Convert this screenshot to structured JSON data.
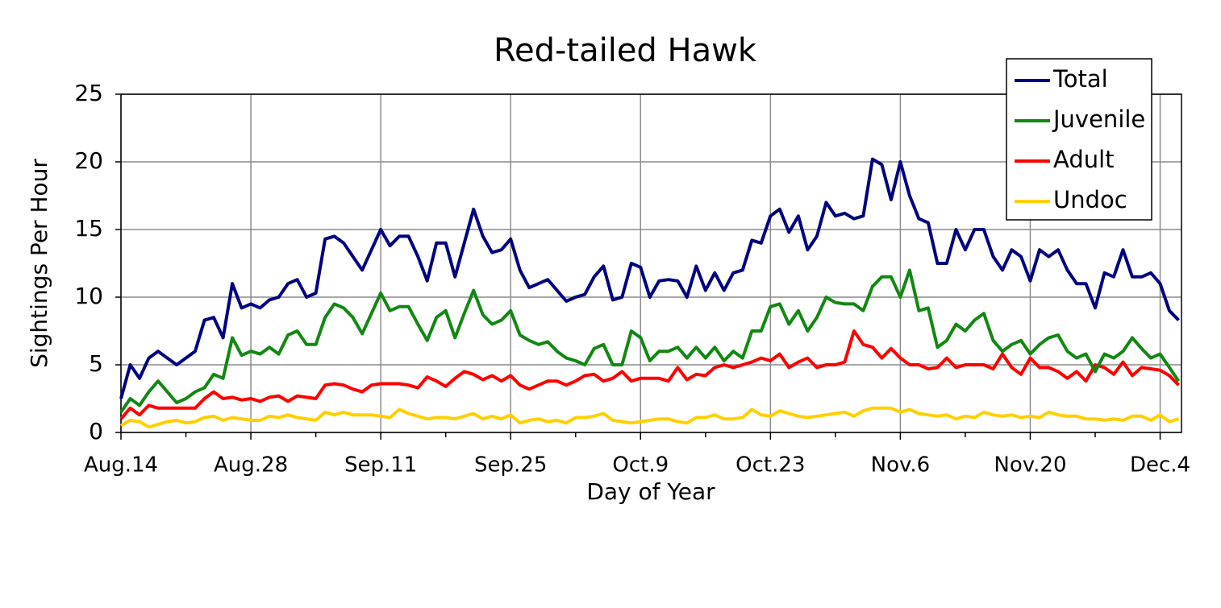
{
  "chart_data": {
    "type": "line",
    "title": "Red-tailed Hawk",
    "xlabel": "Day of Year",
    "ylabel": "Sightings Per Hour",
    "x": [
      226,
      227,
      228,
      229,
      230,
      231,
      232,
      233,
      234,
      235,
      236,
      237,
      238,
      239,
      240,
      241,
      242,
      243,
      244,
      245,
      246,
      247,
      248,
      249,
      250,
      251,
      252,
      253,
      254,
      255,
      256,
      257,
      258,
      259,
      260,
      261,
      262,
      263,
      264,
      265,
      266,
      267,
      268,
      269,
      270,
      271,
      272,
      273,
      274,
      275,
      276,
      277,
      278,
      279,
      280,
      281,
      282,
      283,
      284,
      285,
      286,
      287,
      288,
      289,
      290,
      291,
      292,
      293,
      294,
      295,
      296,
      297,
      298,
      299,
      300,
      301,
      302,
      303,
      304,
      305,
      306,
      307,
      308,
      309,
      310,
      311,
      312,
      313,
      314,
      315,
      316,
      317,
      318,
      319,
      320,
      321,
      322,
      323,
      324,
      325,
      326,
      327,
      328,
      329,
      330,
      331,
      332,
      333,
      334,
      335,
      336,
      337,
      338,
      339,
      340
    ],
    "series": [
      {
        "name": "Total",
        "color": "#000080",
        "values": [
          2.5,
          5.0,
          4.0,
          5.5,
          6.0,
          5.5,
          5.0,
          5.5,
          6.0,
          8.3,
          8.5,
          7.0,
          11.0,
          9.2,
          9.5,
          9.2,
          9.8,
          10.0,
          11.0,
          11.3,
          10.0,
          10.3,
          14.3,
          14.5,
          14.0,
          13.0,
          12.0,
          13.5,
          15.0,
          13.8,
          14.5,
          14.5,
          13.0,
          11.2,
          14.0,
          14.0,
          11.5,
          14.0,
          16.5,
          14.5,
          13.3,
          13.5,
          14.3,
          12.0,
          10.7,
          11.0,
          11.3,
          10.5,
          9.7,
          10.0,
          10.2,
          11.5,
          12.3,
          9.8,
          10.0,
          12.5,
          12.2,
          10.0,
          11.2,
          11.3,
          11.2,
          10.0,
          12.3,
          10.5,
          11.8,
          10.5,
          11.8,
          12.0,
          14.2,
          14.0,
          16.0,
          16.5,
          14.8,
          16.0,
          13.5,
          14.5,
          17.0,
          16.0,
          16.2,
          15.8,
          16.0,
          20.2,
          19.8,
          17.2,
          20.0,
          17.5,
          15.8,
          15.5,
          12.5,
          12.5,
          15.0,
          13.5,
          15.0,
          15.0,
          13.0,
          12.0,
          13.5,
          13.0,
          11.2,
          13.5,
          13.0,
          13.5,
          12.0,
          11.0,
          11.0,
          9.2,
          11.8,
          11.5,
          13.5,
          11.5,
          11.5,
          11.8,
          11.0,
          9.0,
          8.3
        ]
      },
      {
        "name": "Juvenile",
        "color": "#118811",
        "values": [
          1.5,
          2.5,
          2.0,
          3.0,
          3.8,
          3.0,
          2.2,
          2.5,
          3.0,
          3.3,
          4.3,
          4.0,
          7.0,
          5.7,
          6.0,
          5.8,
          6.3,
          5.8,
          7.2,
          7.5,
          6.5,
          6.5,
          8.5,
          9.5,
          9.2,
          8.5,
          7.3,
          8.8,
          10.3,
          9.0,
          9.3,
          9.3,
          8.0,
          6.8,
          8.5,
          9.0,
          7.0,
          8.8,
          10.5,
          8.7,
          8.0,
          8.3,
          9.0,
          7.2,
          6.8,
          6.5,
          6.7,
          6.0,
          5.5,
          5.3,
          5.0,
          6.2,
          6.5,
          5.0,
          5.0,
          7.5,
          7.0,
          5.3,
          6.0,
          6.0,
          6.3,
          5.5,
          6.3,
          5.5,
          6.3,
          5.3,
          6.0,
          5.5,
          7.5,
          7.5,
          9.3,
          9.5,
          8.0,
          9.0,
          7.5,
          8.5,
          10.0,
          9.6,
          9.5,
          9.5,
          9.0,
          10.8,
          11.5,
          11.5,
          10.0,
          12.0,
          9.0,
          9.2,
          6.3,
          6.8,
          8.0,
          7.5,
          8.3,
          8.8,
          6.8,
          6.0,
          6.5,
          6.8,
          5.8,
          6.5,
          7.0,
          7.2,
          6.0,
          5.5,
          5.8,
          4.5,
          5.8,
          5.5,
          6.0,
          7.0,
          6.2,
          5.5,
          5.8,
          4.8,
          3.8
        ]
      },
      {
        "name": "Adult",
        "color": "#ff0000",
        "values": [
          1.0,
          1.8,
          1.3,
          2.0,
          1.8,
          1.8,
          1.8,
          1.8,
          1.8,
          2.5,
          3.0,
          2.5,
          2.6,
          2.4,
          2.5,
          2.3,
          2.6,
          2.7,
          2.3,
          2.7,
          2.6,
          2.5,
          3.5,
          3.6,
          3.5,
          3.2,
          3.0,
          3.5,
          3.6,
          3.6,
          3.6,
          3.5,
          3.3,
          4.1,
          3.8,
          3.4,
          4.0,
          4.5,
          4.3,
          3.9,
          4.2,
          3.8,
          4.2,
          3.5,
          3.2,
          3.5,
          3.8,
          3.8,
          3.5,
          3.8,
          4.2,
          4.3,
          3.8,
          4.0,
          4.5,
          3.8,
          4.0,
          4.0,
          4.0,
          3.8,
          4.8,
          3.9,
          4.3,
          4.2,
          4.8,
          5.0,
          4.8,
          5.0,
          5.2,
          5.5,
          5.3,
          5.8,
          4.8,
          5.2,
          5.5,
          4.8,
          5.0,
          5.0,
          5.2,
          7.5,
          6.5,
          6.3,
          5.5,
          6.2,
          5.5,
          5.0,
          5.0,
          4.7,
          4.8,
          5.5,
          4.8,
          5.0,
          5.0,
          5.0,
          4.7,
          5.8,
          4.8,
          4.3,
          5.5,
          4.8,
          4.8,
          4.5,
          4.0,
          4.5,
          3.8,
          5.0,
          4.8,
          4.3,
          5.2,
          4.2,
          4.8,
          4.7,
          4.6,
          4.2,
          3.5
        ]
      },
      {
        "name": "Undoc",
        "color": "#ffd000",
        "values": [
          0.5,
          0.9,
          0.8,
          0.4,
          0.6,
          0.8,
          0.9,
          0.7,
          0.8,
          1.1,
          1.2,
          0.9,
          1.1,
          1.0,
          0.9,
          0.9,
          1.2,
          1.1,
          1.3,
          1.1,
          1.0,
          0.9,
          1.5,
          1.3,
          1.5,
          1.3,
          1.3,
          1.3,
          1.2,
          1.1,
          1.7,
          1.4,
          1.2,
          1.0,
          1.1,
          1.1,
          1.0,
          1.2,
          1.4,
          1.0,
          1.2,
          1.0,
          1.3,
          0.7,
          0.9,
          1.0,
          0.8,
          0.9,
          0.7,
          1.1,
          1.1,
          1.2,
          1.4,
          0.9,
          0.8,
          0.7,
          0.8,
          0.9,
          1.0,
          1.0,
          0.8,
          0.7,
          1.1,
          1.1,
          1.3,
          1.0,
          1.0,
          1.1,
          1.7,
          1.3,
          1.2,
          1.6,
          1.4,
          1.2,
          1.1,
          1.2,
          1.3,
          1.4,
          1.5,
          1.2,
          1.6,
          1.8,
          1.8,
          1.8,
          1.5,
          1.7,
          1.4,
          1.3,
          1.2,
          1.3,
          1.0,
          1.2,
          1.1,
          1.5,
          1.3,
          1.2,
          1.3,
          1.1,
          1.2,
          1.1,
          1.5,
          1.3,
          1.2,
          1.2,
          1.0,
          1.0,
          0.9,
          1.0,
          0.9,
          1.2,
          1.2,
          0.9,
          1.3,
          0.8,
          1.0
        ]
      }
    ],
    "xlim": [
      226,
      340.3
    ],
    "xticks": [
      {
        "value": 226,
        "label": "Aug.14"
      },
      {
        "value": 240,
        "label": "Aug.28"
      },
      {
        "value": 254,
        "label": "Sep.11"
      },
      {
        "value": 268,
        "label": "Sep.25"
      },
      {
        "value": 282,
        "label": "Oct.9"
      },
      {
        "value": 296,
        "label": "Oct.23"
      },
      {
        "value": 310,
        "label": "Nov.6"
      },
      {
        "value": 324,
        "label": "Nov.20"
      },
      {
        "value": 338,
        "label": "Dec.4"
      }
    ],
    "xminorticks": [
      233,
      247,
      261,
      275,
      289,
      303,
      317,
      331
    ],
    "ylim": [
      0,
      25
    ],
    "yticks": [
      0,
      5,
      10,
      15,
      20,
      25
    ],
    "grid": true,
    "legend": "upper right"
  }
}
